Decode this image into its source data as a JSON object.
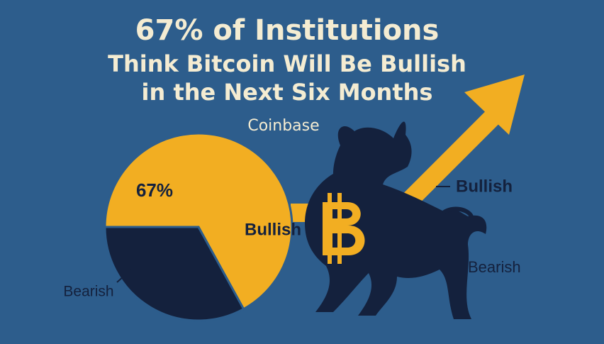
{
  "chart_data": {
    "type": "pie",
    "title": [
      "67% of Institutions",
      "Think Bitcoin Will Be Bullish",
      "in the Next Six Months"
    ],
    "subtitle": "Coinbase",
    "categories": [
      "Bullish",
      "Bearish"
    ],
    "values": [
      67,
      33
    ],
    "value_labels": [
      "67%",
      null
    ],
    "colors": [
      "#f2ae22",
      "#14213d"
    ],
    "annotations": [
      "Bullish",
      "Bearish"
    ]
  }
}
